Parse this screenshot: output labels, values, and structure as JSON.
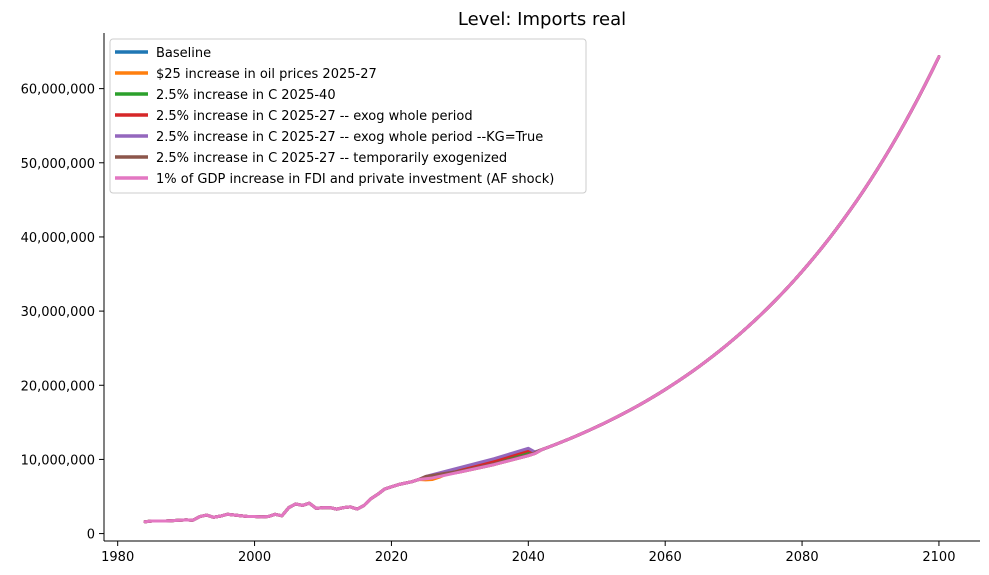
{
  "chart_data": {
    "type": "line",
    "title": "Level: Imports real",
    "xlabel": "",
    "ylabel": "",
    "xlim": [
      1978,
      2106
    ],
    "ylim": [
      -1000000,
      67500000
    ],
    "x_ticks": [
      1980,
      2000,
      2020,
      2040,
      2060,
      2080,
      2100
    ],
    "x_tick_labels": [
      "1980",
      "2000",
      "2020",
      "2040",
      "2060",
      "2080",
      "2100"
    ],
    "y_ticks": [
      0,
      10000000,
      20000000,
      30000000,
      40000000,
      50000000,
      60000000
    ],
    "y_tick_labels": [
      "0",
      "10,000,000",
      "20,000,000",
      "30,000,000",
      "40,000,000",
      "50,000,000",
      "60,000,000"
    ],
    "grid": false,
    "legend_position": "top-left",
    "history": {
      "x": [
        1984,
        1985,
        1986,
        1987,
        1988,
        1989,
        1990,
        1991,
        1992,
        1993,
        1994,
        1995,
        1996,
        1997,
        1998,
        1999,
        2000,
        2001,
        2002,
        2003,
        2004,
        2005,
        2006,
        2007,
        2008,
        2009,
        2010,
        2011,
        2012,
        2013,
        2014,
        2015,
        2016,
        2017,
        2018,
        2019,
        2020,
        2021,
        2022,
        2023,
        2024
      ],
      "y": [
        1600000,
        1700000,
        1700000,
        1700000,
        1750000,
        1800000,
        1850000,
        1800000,
        2300000,
        2500000,
        2200000,
        2350000,
        2600000,
        2500000,
        2400000,
        2300000,
        2300000,
        2250000,
        2300000,
        2600000,
        2400000,
        3500000,
        4000000,
        3800000,
        4100000,
        3400000,
        3500000,
        3500000,
        3300000,
        3500000,
        3600000,
        3300000,
        3800000,
        4700000,
        5300000,
        6000000,
        6300000,
        6600000,
        6800000,
        7000000,
        7300000
      ]
    },
    "series": [
      {
        "name": "Baseline",
        "color": "#1f77b4",
        "x": [
          2024,
          2030,
          2035,
          2040,
          2041
        ],
        "y": [
          7300000,
          8300000,
          9300000,
          10500000,
          10800000
        ]
      },
      {
        "name": "$25 increase in oil prices 2025-27",
        "color": "#ff7f0e",
        "x": [
          2024,
          2025,
          2026,
          2027,
          2028,
          2030,
          2035,
          2040,
          2041
        ],
        "y": [
          7300000,
          7250000,
          7300000,
          7600000,
          8000000,
          8300000,
          9300000,
          10500000,
          10800000
        ]
      },
      {
        "name": "2.5% increase in C 2025-40",
        "color": "#2ca02c",
        "x": [
          2024,
          2030,
          2035,
          2040,
          2041
        ],
        "y": [
          7300000,
          8500000,
          9600000,
          11000000,
          11000000
        ]
      },
      {
        "name": "2.5% increase in C 2025-27 -- exog whole period",
        "color": "#d62728",
        "x": [
          2024,
          2025,
          2030,
          2035,
          2040,
          2041
        ],
        "y": [
          7300000,
          7600000,
          8700000,
          9800000,
          11200000,
          11000000
        ]
      },
      {
        "name": "2.5% increase in C 2025-27 -- exog whole period --KG=True",
        "color": "#9467bd",
        "x": [
          2024,
          2025,
          2030,
          2035,
          2040,
          2041
        ],
        "y": [
          7300000,
          7700000,
          8900000,
          10100000,
          11500000,
          11000000
        ]
      },
      {
        "name": "2.5% increase in C 2025-27 -- temporarily exogenized",
        "color": "#8c564b",
        "x": [
          2024,
          2025,
          2027,
          2030,
          2035,
          2040,
          2041
        ],
        "y": [
          7300000,
          7700000,
          8000000,
          8400000,
          9400000,
          10600000,
          10900000
        ]
      },
      {
        "name": "1% of GDP increase in FDI and private investment (AF shock)",
        "color": "#e377c2",
        "x": [
          2024,
          2026,
          2030,
          2035,
          2040,
          2041
        ],
        "y": [
          7300000,
          7500000,
          8300000,
          9300000,
          10500000,
          10800000
        ]
      }
    ],
    "projection": {
      "start_year": 2041,
      "end_year": 2100,
      "start_value": 11000000,
      "end_value": 64300000
    }
  }
}
